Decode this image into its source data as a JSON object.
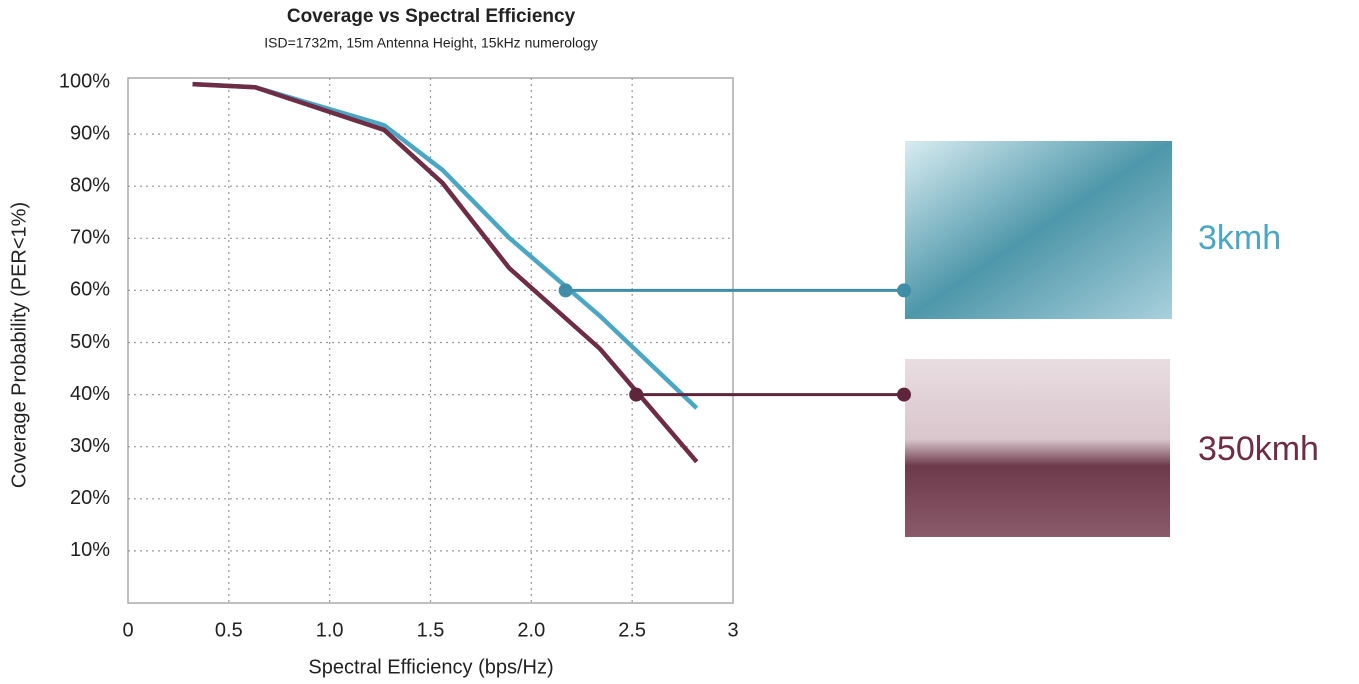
{
  "chart_data": {
    "type": "line",
    "title": "Coverage vs Spectral Efficiency",
    "subtitle": "ISD=1732m,  15m Antenna Height, 15kHz numerology",
    "x_label": "Spectral Efficiency  (bps/Hz)",
    "y_label": "Coverage Probability (PER<1%)",
    "xlim": [
      0,
      3
    ],
    "ylim": [
      0,
      100
    ],
    "xticks": [
      0,
      0.5,
      {
        "value": 1,
        "label": "1.0"
      },
      1.5,
      {
        "value": 2,
        "label": "2.0"
      },
      2.5,
      3
    ],
    "yticks": [
      {
        "value": 10,
        "label": "10%"
      },
      {
        "value": 20,
        "label": "20%"
      },
      {
        "value": 30,
        "label": "30%"
      },
      {
        "value": 40,
        "label": "40%"
      },
      {
        "value": 50,
        "label": "50%"
      },
      {
        "value": 60,
        "label": "60%"
      },
      {
        "value": 70,
        "label": "70%"
      },
      {
        "value": 80,
        "label": "80%"
      },
      {
        "value": 90,
        "label": "90%"
      },
      {
        "value": 100,
        "label": "100%"
      }
    ],
    "grid": true,
    "series": [
      {
        "name": "3kmh",
        "color": "#4ba6c4",
        "x": [
          0.32,
          0.63,
          1.27,
          1.56,
          1.89,
          2.34,
          2.82
        ],
        "values": [
          99.6,
          99.0,
          91.7,
          83.1,
          70.1,
          55.1,
          37.4
        ],
        "highlight_x": 2.17,
        "highlight_y": 60
      },
      {
        "name": "350kmh",
        "color": "#6e2c45",
        "x": [
          0.32,
          0.63,
          1.27,
          1.56,
          1.89,
          2.34,
          2.82
        ],
        "values": [
          99.6,
          99.0,
          90.8,
          80.6,
          64.3,
          48.8,
          27.1
        ],
        "highlight_x": 2.52,
        "highlight_y": 40
      }
    ]
  }
}
